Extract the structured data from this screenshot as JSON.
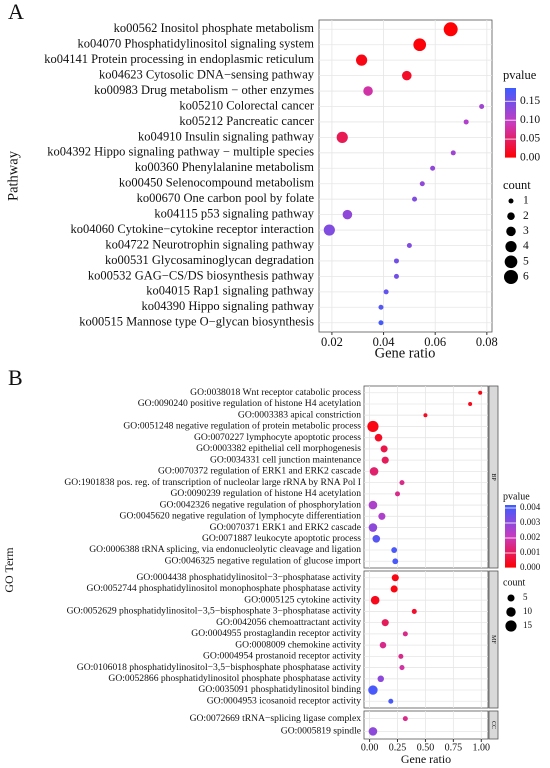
{
  "chart_data": [
    {
      "type": "scatter",
      "panel": "A",
      "xlabel": "Gene ratio",
      "ylabel": "Pathway",
      "categories": [
        "ko00562 Inositol phosphate metabolism",
        "ko04070 Phosphatidylinositol signaling system",
        "ko04141 Protein processing in endoplasmic reticulum",
        "ko04623 Cytosolic DNA−sensing pathway",
        "ko00983 Drug metabolism − other enzymes",
        "ko05210 Colorectal cancer",
        "ko05212 Pancreatic cancer",
        "ko04910 Insulin signaling pathway",
        "ko04392 Hippo signaling pathway − multiple species",
        "ko00360 Phenylalanine metabolism",
        "ko00450 Selenocompound metabolism",
        "ko00670 One carbon pool by folate",
        "ko04115 p53 signaling pathway",
        "ko04060 Cytokine−cytokine receptor interaction",
        "ko04722 Neurotrophin signaling pathway",
        "ko00531 Glycosaminoglycan degradation",
        "ko00532 GAG−CS/DS biosynthesis pathway",
        "ko04015 Rap1 signaling pathway",
        "ko04390 Hippo signaling pathway",
        "ko00515 Mannose type O−glycan biosynthesis"
      ],
      "x": [
        0.066,
        0.054,
        0.0315,
        0.049,
        0.034,
        0.078,
        0.072,
        0.024,
        0.067,
        0.059,
        0.055,
        0.052,
        0.026,
        0.019,
        0.05,
        0.045,
        0.045,
        0.041,
        0.039,
        0.039
      ],
      "pvalue": [
        0.002,
        0.005,
        0.01,
        0.02,
        0.08,
        0.12,
        0.11,
        0.04,
        0.12,
        0.13,
        0.13,
        0.14,
        0.13,
        0.14,
        0.14,
        0.15,
        0.15,
        0.16,
        0.17,
        0.18
      ],
      "count": [
        6,
        5,
        4,
        3,
        3,
        1,
        1,
        4,
        1,
        1,
        1,
        1,
        3,
        4,
        1,
        1,
        1,
        1,
        1,
        1
      ],
      "xlim": [
        0.015,
        0.082
      ],
      "xticks": [
        0.02,
        0.04,
        0.06,
        0.08
      ],
      "grid": true,
      "color_title": "pvalue",
      "color_lim": [
        0,
        0.185
      ],
      "color_ticks": [
        {
          "value": 0,
          "label": "0.00"
        },
        0.05,
        {
          "value": 0.1,
          "label": "0.10"
        },
        0.15
      ],
      "colors": [
        "#ff0000",
        "#c93bbf",
        "#3d5cff"
      ],
      "size_title": "count",
      "size_ticks": [
        1,
        2,
        3,
        4,
        5,
        6
      ]
    },
    {
      "type": "scatter",
      "panel": "B",
      "xlabel": "Gene ratio",
      "ylabel": "GO Term",
      "facets": [
        {
          "name": "BP",
          "categories": [
            "GO:0038018 Wnt receptor catabolic process",
            "GO:0090240 positive regulation of histone H4 acetylation",
            "GO:0003383 apical constriction",
            "GO:0051248 negative regulation of protein metabolic process",
            "GO:0070227 lymphocyte apoptotic process",
            "GO:0003382 epithelial cell morphogenesis",
            "GO:0034331 cell junction maintenance",
            "GO:0070372 regulation of ERK1 and ERK2 cascade",
            "GO:1901838 pos. reg. of transcription of nucleolar large rRNA by RNA Pol I",
            "GO:0090239 regulation of histone H4 acetylation",
            "GO:0042326 negative regulation of phosphorylation",
            "GO:0045620 negative regulation of lymphocyte differentiation",
            "GO:0070371 ERK1 and ERK2 cascade",
            "GO:0071887 leukocyte apoptotic process",
            "GO:0006388 tRNA splicing, via endonucleolytic cleavage and ligation",
            "GO:0046325 negative regulation of glucose import"
          ],
          "x": [
            0.99,
            0.9,
            0.5,
            0.03,
            0.08,
            0.13,
            0.14,
            0.04,
            0.29,
            0.25,
            0.03,
            0.11,
            0.03,
            0.06,
            0.22,
            0.23
          ],
          "pvalue": [
            0.0002,
            0.0003,
            0.0004,
            0.0002,
            0.0004,
            0.0008,
            0.001,
            0.0012,
            0.0015,
            0.0015,
            0.0025,
            0.0025,
            0.003,
            0.0038,
            0.004,
            0.004
          ],
          "count": [
            1,
            1,
            1,
            15,
            6,
            5,
            5,
            8,
            2,
            2,
            8,
            5,
            8,
            6,
            3,
            3
          ]
        },
        {
          "name": "MF",
          "categories": [
            "GO:0004438 phosphatidylinositol−3−phosphatase activity",
            "GO:0052744 phosphatidylinositol monophosphate phosphatase activity",
            "GO:0005125 cytokine activity",
            "GO:0052629 phosphatidylinositol−3,5−bisphosphate 3−phosphatase activity",
            "GO:0042056 chemoattractant activity",
            "GO:0004955 prostaglandin receptor activity",
            "GO:0008009 chemokine activity",
            "GO:0004954 prostanoid receptor activity",
            "GO:0106018 phosphatidylinositol−3,5−bisphosphate phosphatase activity",
            "GO:0052866 phosphatidylinositol phosphate phosphatase activity",
            "GO:0035091 phosphatidylinositol binding",
            "GO:0004953 icosanoid receptor activity"
          ],
          "x": [
            0.23,
            0.22,
            0.05,
            0.4,
            0.14,
            0.32,
            0.12,
            0.28,
            0.29,
            0.1,
            0.03,
            0.19
          ],
          "pvalue": [
            0.0002,
            0.0002,
            0.0003,
            0.0005,
            0.001,
            0.0015,
            0.0015,
            0.0015,
            0.0018,
            0.003,
            0.004,
            0.004
          ],
          "count": [
            5,
            5,
            8,
            2,
            5,
            2,
            4,
            2,
            2,
            4,
            10,
            2
          ]
        },
        {
          "name": "CC",
          "categories": [
            "GO:0072669 tRNA−splicing ligase complex",
            "GO:0005819 spindle"
          ],
          "x": [
            0.32,
            0.03
          ],
          "pvalue": [
            0.0015,
            0.003
          ],
          "count": [
            2,
            8
          ]
        }
      ],
      "xlim": [
        -0.05,
        1.06
      ],
      "xticks": [
        {
          "value": 0,
          "label": "0.00"
        },
        0.25,
        {
          "value": 0.5,
          "label": "0.50"
        },
        0.75,
        {
          "value": 1,
          "label": "1.00"
        }
      ],
      "grid": true,
      "color_title": "pvalue",
      "color_lim": [
        0,
        0.0042
      ],
      "color_ticks": [
        {
          "value": 0,
          "label": "0.000"
        },
        0.001,
        0.002,
        0.003,
        0.004
      ],
      "colors": [
        "#ff0000",
        "#c93bbf",
        "#3d5cff"
      ],
      "size_title": "count",
      "size_ticks": [
        5,
        10,
        15
      ]
    }
  ]
}
